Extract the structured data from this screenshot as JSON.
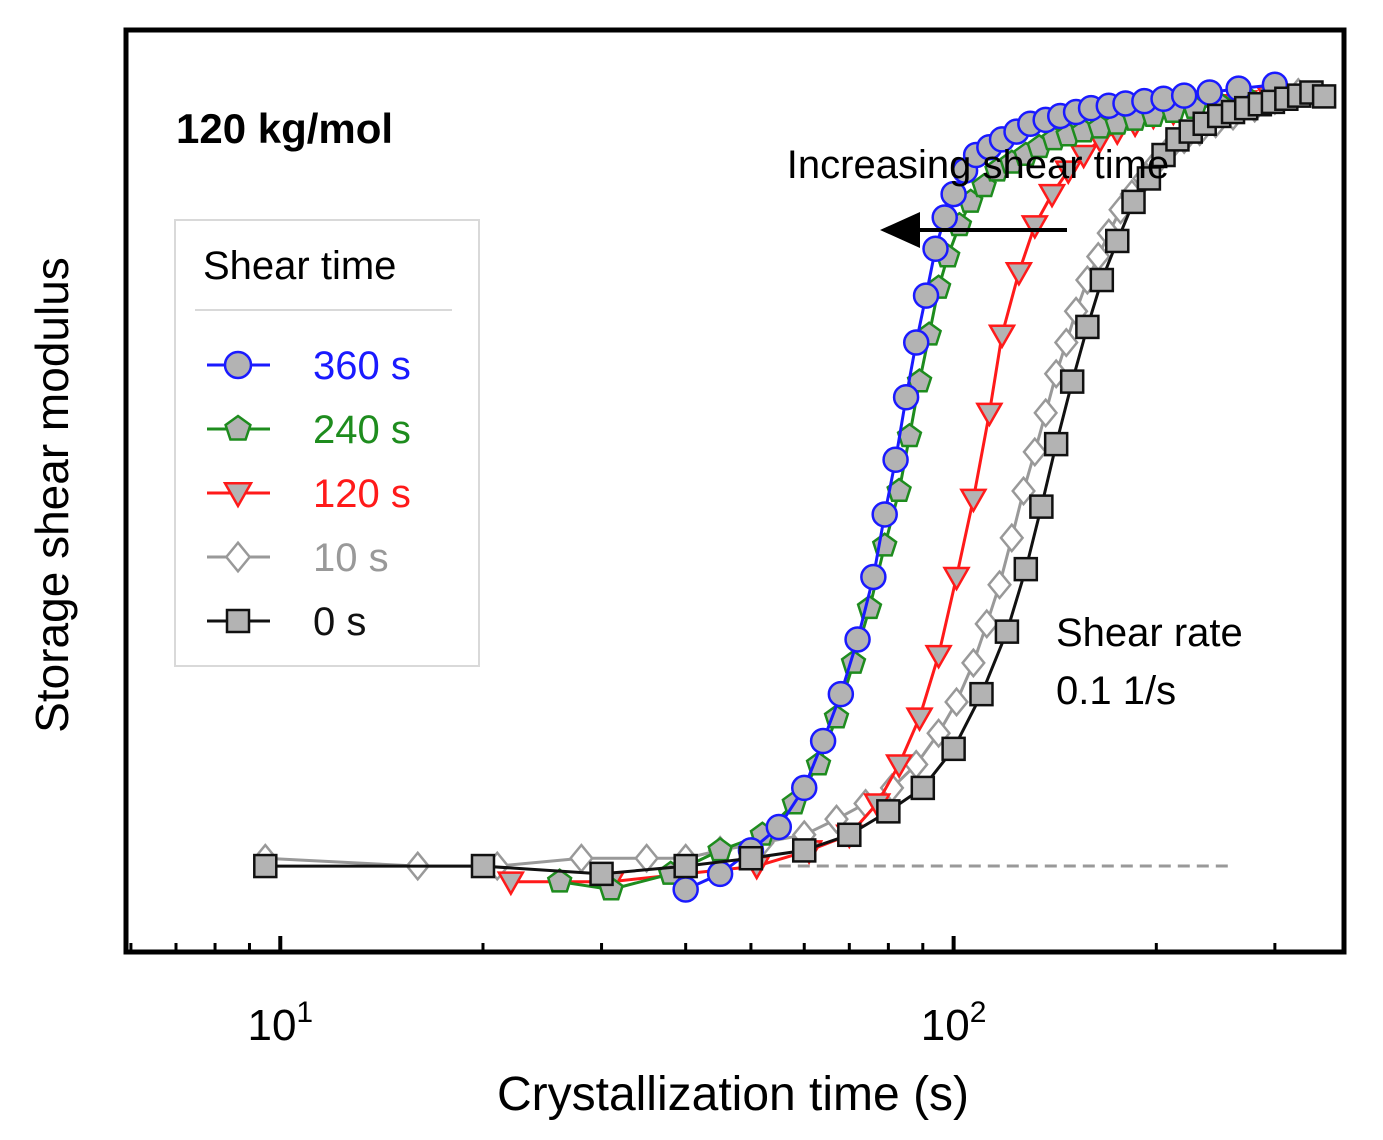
{
  "chart_data": {
    "type": "line",
    "title": "120 kg/mol",
    "xlabel": "Crystallization time (s)",
    "ylabel": "Storage shear modulus",
    "xscale": "log",
    "xlim": [
      5.9,
      380
    ],
    "ylim": [
      -0.11,
      1.07
    ],
    "y_units": "arbitrary (no y tick labels shown)",
    "x_tick_labels": [
      {
        "base": "10",
        "exp": "1",
        "value": 10
      },
      {
        "base": "10",
        "exp": "2",
        "value": 100
      }
    ],
    "legend": {
      "title": "Shear time",
      "position": "upper-left"
    },
    "annotations": {
      "arrow_text": "Increasing shear time",
      "arrow_direction": "left",
      "shear_rate_label": "Shear rate",
      "shear_rate_value": "0.1 1/s"
    },
    "baseline": {
      "style": "dashed",
      "color": "#999999",
      "x_range": [
        55,
        260
      ],
      "y": 0.0
    },
    "series": [
      {
        "name": "360 s",
        "color": "#1a1aff",
        "marker": "circle",
        "fill": "#b3b3b3",
        "x": [
          40,
          45,
          50,
          55,
          60,
          64,
          68,
          72,
          76,
          79,
          82,
          85,
          88,
          91,
          94,
          97,
          100,
          104,
          108,
          113,
          118,
          124,
          130,
          137,
          144,
          152,
          160,
          170,
          180,
          192,
          205,
          220,
          240,
          265,
          300
        ],
        "y": [
          -0.03,
          -0.01,
          0.02,
          0.05,
          0.1,
          0.16,
          0.22,
          0.29,
          0.37,
          0.45,
          0.52,
          0.6,
          0.67,
          0.73,
          0.79,
          0.83,
          0.86,
          0.89,
          0.91,
          0.92,
          0.93,
          0.94,
          0.95,
          0.955,
          0.96,
          0.965,
          0.97,
          0.973,
          0.976,
          0.979,
          0.982,
          0.986,
          0.99,
          0.995,
          1.0
        ]
      },
      {
        "name": "240 s",
        "color": "#1e8c1e",
        "marker": "pentagon",
        "fill": "#b3b3b3",
        "x": [
          26,
          31,
          38,
          45,
          52,
          58,
          63,
          67,
          71,
          75,
          79,
          83,
          86,
          89,
          92,
          95,
          98,
          102,
          106,
          111,
          116,
          122,
          128,
          134,
          141,
          148,
          156,
          165,
          175,
          186,
          198,
          212,
          228,
          248,
          275,
          300
        ],
        "y": [
          -0.02,
          -0.03,
          -0.01,
          0.02,
          0.04,
          0.08,
          0.13,
          0.19,
          0.26,
          0.33,
          0.41,
          0.48,
          0.55,
          0.62,
          0.68,
          0.74,
          0.78,
          0.82,
          0.85,
          0.87,
          0.89,
          0.9,
          0.91,
          0.92,
          0.93,
          0.935,
          0.94,
          0.945,
          0.95,
          0.955,
          0.96,
          0.965,
          0.97,
          0.975,
          0.98,
          0.985
        ]
      },
      {
        "name": "120 s",
        "color": "#ff1a1a",
        "marker": "triangle-down",
        "fill": "#b3b3b3",
        "x": [
          22,
          31,
          51,
          61,
          70,
          77,
          83,
          89,
          95,
          101,
          107,
          113,
          118,
          125,
          132,
          140,
          148,
          156,
          165,
          175,
          186,
          198,
          212,
          228,
          248,
          270,
          295
        ],
        "y": [
          -0.02,
          -0.02,
          0.0,
          0.02,
          0.04,
          0.08,
          0.13,
          0.19,
          0.27,
          0.37,
          0.47,
          0.58,
          0.68,
          0.76,
          0.82,
          0.86,
          0.89,
          0.91,
          0.93,
          0.94,
          0.95,
          0.96,
          0.965,
          0.97,
          0.975,
          0.98,
          0.985
        ]
      },
      {
        "name": "10 s",
        "color": "#999999",
        "marker": "diamond",
        "fill": "#ffffff",
        "x": [
          9.5,
          16,
          21,
          28,
          35,
          40,
          45,
          52,
          60,
          67,
          74,
          81,
          88,
          95,
          101,
          107,
          112,
          117,
          122,
          127,
          132,
          137,
          142,
          147,
          152,
          158,
          164,
          170,
          177,
          184,
          192,
          200,
          210,
          220,
          232,
          245,
          260,
          280,
          300,
          325
        ],
        "y": [
          0.01,
          0.0,
          0.0,
          0.01,
          0.01,
          0.01,
          0.02,
          0.03,
          0.04,
          0.06,
          0.08,
          0.1,
          0.13,
          0.17,
          0.21,
          0.26,
          0.31,
          0.36,
          0.42,
          0.48,
          0.53,
          0.58,
          0.63,
          0.67,
          0.71,
          0.75,
          0.78,
          0.81,
          0.84,
          0.86,
          0.88,
          0.9,
          0.92,
          0.93,
          0.94,
          0.95,
          0.96,
          0.97,
          0.98,
          0.99
        ]
      },
      {
        "name": "0 s",
        "color": "#111111",
        "marker": "square",
        "fill": "#b3b3b3",
        "x": [
          9.5,
          20,
          30,
          40,
          50,
          60,
          70,
          80,
          90,
          100,
          110,
          120,
          128,
          135,
          142,
          150,
          158,
          166,
          175,
          185,
          195,
          205,
          215,
          225,
          236,
          248,
          260,
          272,
          285,
          298,
          312,
          326,
          340,
          355
        ],
        "y": [
          0.0,
          0.0,
          -0.01,
          0.0,
          0.01,
          0.02,
          0.04,
          0.07,
          0.1,
          0.15,
          0.22,
          0.3,
          0.38,
          0.46,
          0.54,
          0.62,
          0.69,
          0.75,
          0.8,
          0.85,
          0.88,
          0.91,
          0.93,
          0.94,
          0.95,
          0.96,
          0.965,
          0.97,
          0.975,
          0.978,
          0.982,
          0.986,
          0.99,
          0.985
        ]
      }
    ]
  }
}
